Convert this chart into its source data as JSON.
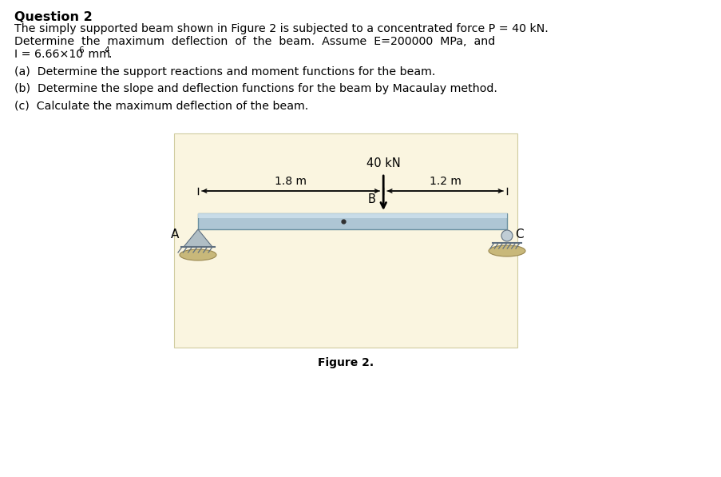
{
  "title": "Question 2",
  "background_color": "#ffffff",
  "fig_bg_color": "#faf5e0",
  "line1": "The simply supported beam shown in Figure 2 is subjected to a concentrated force P = 40 kN.",
  "line2": "Determine  the  maximum  deflection  of  the  beam.  Assume  E=200000  MPa,  and",
  "line3a": "I = 6.66×10",
  "line3b": "6",
  "line3c": " mm",
  "line3d": "4",
  "line3e": ".",
  "part_a": "(a)  Determine the support reactions and moment functions for the beam.",
  "part_b": "(b)  Determine the slope and deflection functions for the beam by Macaulay method.",
  "part_c": "(c)  Calculate the maximum deflection of the beam.",
  "figure_caption": "Figure 2.",
  "load_label": "40 kN",
  "left_dim": "1.8 m",
  "right_dim": "1.2 m",
  "point_B": "B",
  "point_A": "A",
  "point_C": "C",
  "beam_color_main": "#aec6d4",
  "beam_color_highlight": "#cde0ec",
  "beam_color_edge": "#6a8fa0",
  "support_color": "#b0bec5",
  "ground_color": "#c8b87a",
  "roller_color": "#c0cdd5"
}
